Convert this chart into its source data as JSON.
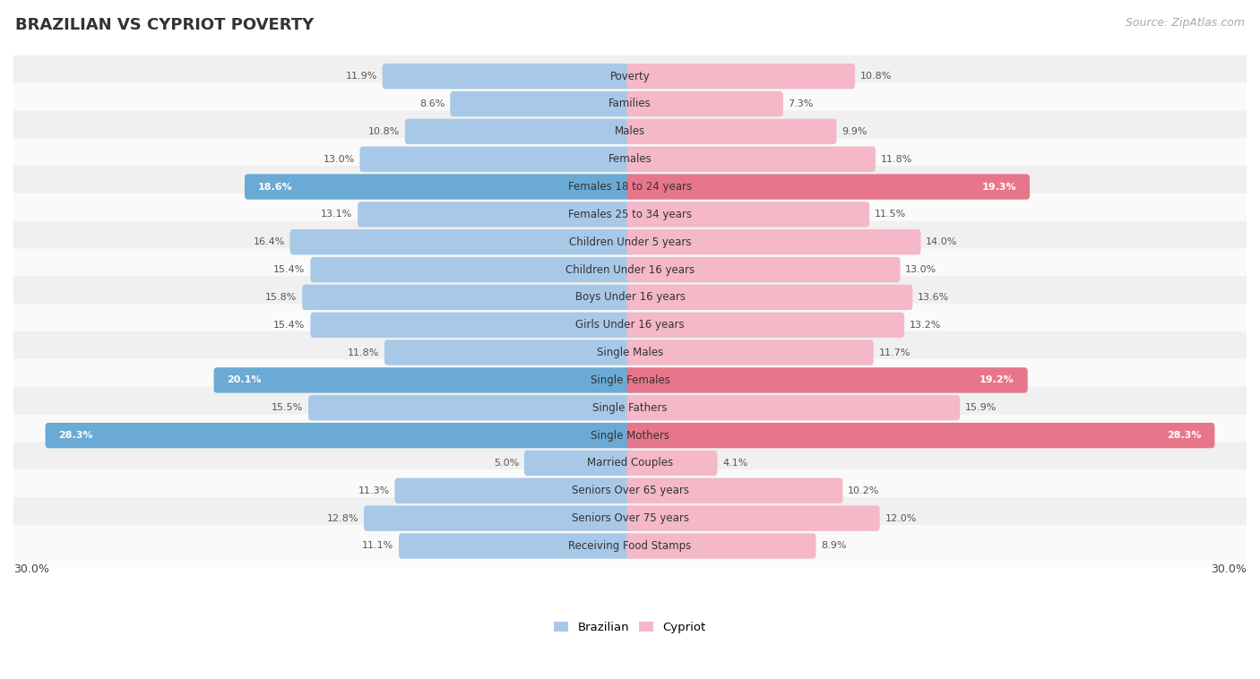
{
  "title": "BRAZILIAN VS CYPRIOT POVERTY",
  "source": "Source: ZipAtlas.com",
  "categories": [
    "Poverty",
    "Families",
    "Males",
    "Females",
    "Females 18 to 24 years",
    "Females 25 to 34 years",
    "Children Under 5 years",
    "Children Under 16 years",
    "Boys Under 16 years",
    "Girls Under 16 years",
    "Single Males",
    "Single Females",
    "Single Fathers",
    "Single Mothers",
    "Married Couples",
    "Seniors Over 65 years",
    "Seniors Over 75 years",
    "Receiving Food Stamps"
  ],
  "brazilian": [
    11.9,
    8.6,
    10.8,
    13.0,
    18.6,
    13.1,
    16.4,
    15.4,
    15.8,
    15.4,
    11.8,
    20.1,
    15.5,
    28.3,
    5.0,
    11.3,
    12.8,
    11.1
  ],
  "cypriot": [
    10.8,
    7.3,
    9.9,
    11.8,
    19.3,
    11.5,
    14.0,
    13.0,
    13.6,
    13.2,
    11.7,
    19.2,
    15.9,
    28.3,
    4.1,
    10.2,
    12.0,
    8.9
  ],
  "brazil_color_normal": "#a8c8e8",
  "cypriot_color_normal": "#f4b8c8",
  "highlight_rows": [
    4,
    11,
    13
  ],
  "highlight_brazil_color": "#6aaad4",
  "highlight_cypriot_color": "#e8768a",
  "xlim": 30.0,
  "bg_color": "#ffffff",
  "row_bg_even": "#f0f0f0",
  "row_bg_odd": "#fafafa",
  "legend_brazil": "Brazilian",
  "legend_cypriot": "Cypriot"
}
